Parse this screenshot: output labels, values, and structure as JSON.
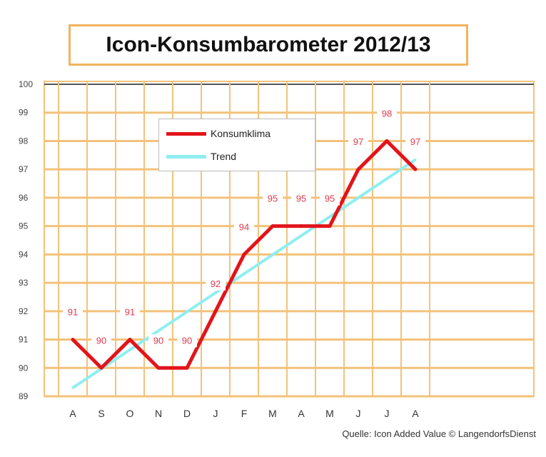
{
  "chart_data": {
    "type": "line",
    "title": "Icon-Konsumbarometer 2012/13",
    "source": "Quelle: Icon Added Value © LangendorfsDienst",
    "categories": [
      "A",
      "S",
      "O",
      "N",
      "D",
      "J",
      "F",
      "M",
      "A",
      "M",
      "J",
      "J",
      "A"
    ],
    "ylim": [
      89,
      100
    ],
    "yticks": [
      "89",
      "90",
      "91",
      "92",
      "93",
      "94",
      "95",
      "96",
      "97",
      "98",
      "99",
      "100"
    ],
    "series": [
      {
        "name": "Konsumklima",
        "color": "#e2141b",
        "values": [
          91,
          90,
          91,
          90,
          90,
          92,
          94,
          95,
          95,
          95,
          97,
          98,
          97
        ],
        "labels": [
          "91",
          "90",
          "91",
          "90",
          "90",
          "92",
          "94",
          "95",
          "95",
          "95",
          "97",
          "98",
          "97"
        ]
      },
      {
        "name": "Trend",
        "color": "#8eeef0",
        "values": [
          89.3,
          89.97,
          90.64,
          91.31,
          91.98,
          92.65,
          93.32,
          93.99,
          94.66,
          95.33,
          96.0,
          96.67,
          97.34
        ]
      }
    ],
    "grid": true,
    "legend": "top-left"
  }
}
